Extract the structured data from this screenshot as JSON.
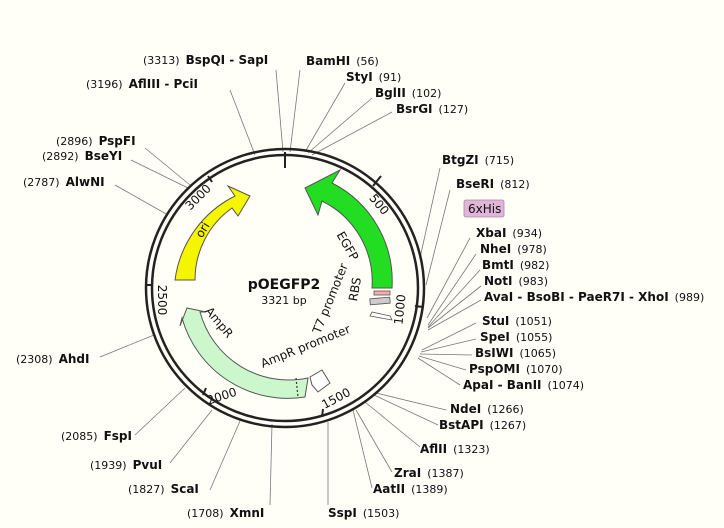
{
  "plasmid": {
    "name": "pOEGFP2",
    "length_label": "3321 bp"
  },
  "ticks": [
    "500",
    "1000",
    "1500",
    "2000",
    "2500",
    "3000"
  ],
  "features": {
    "egfp": "EGFP",
    "ori": "ori",
    "ampr": "AmpR",
    "ampr_promoter": "AmpR promoter",
    "t7_promoter": "T7 promoter",
    "rbs": "RBS",
    "his": "6xHis"
  },
  "sites": [
    {
      "id": "bspqi",
      "name": "BspQI - SapI",
      "pos": "(3313)"
    },
    {
      "id": "bamhi",
      "name": "BamHI",
      "pos": "(56)"
    },
    {
      "id": "styi",
      "name": "StyI",
      "pos": "(91)"
    },
    {
      "id": "bglii",
      "name": "BglII",
      "pos": "(102)"
    },
    {
      "id": "bsrgi",
      "name": "BsrGI",
      "pos": "(127)"
    },
    {
      "id": "afliii",
      "name": "AflIII - PciI",
      "pos": "(3196)"
    },
    {
      "id": "pspfi",
      "name": "PspFI",
      "pos": "(2896)"
    },
    {
      "id": "bseyi",
      "name": "BseYI",
      "pos": "(2892)"
    },
    {
      "id": "alwni",
      "name": "AlwNI",
      "pos": "(2787)"
    },
    {
      "id": "btgzi",
      "name": "BtgZI",
      "pos": "(715)"
    },
    {
      "id": "bseri",
      "name": "BseRI",
      "pos": "(812)"
    },
    {
      "id": "xbai",
      "name": "XbaI",
      "pos": "(934)"
    },
    {
      "id": "nhei",
      "name": "NheI",
      "pos": "(978)"
    },
    {
      "id": "bmti",
      "name": "BmtI",
      "pos": "(982)"
    },
    {
      "id": "noti",
      "name": "NotI",
      "pos": "(983)"
    },
    {
      "id": "avai",
      "name": "AvaI - BsoBI - PaeR7I - XhoI",
      "pos": "(989)"
    },
    {
      "id": "stui",
      "name": "StuI",
      "pos": "(1051)"
    },
    {
      "id": "spei",
      "name": "SpeI",
      "pos": "(1055)"
    },
    {
      "id": "bslwi",
      "name": "BsIWI",
      "pos": "(1065)"
    },
    {
      "id": "pspomi",
      "name": "PspOMI",
      "pos": "(1070)"
    },
    {
      "id": "apai",
      "name": "ApaI - BanII",
      "pos": "(1074)"
    },
    {
      "id": "ndei",
      "name": "NdeI",
      "pos": "(1266)"
    },
    {
      "id": "bstapi",
      "name": "BstAPI",
      "pos": "(1267)"
    },
    {
      "id": "aflii",
      "name": "AflII",
      "pos": "(1323)"
    },
    {
      "id": "zrai",
      "name": "ZraI",
      "pos": "(1387)"
    },
    {
      "id": "aatii",
      "name": "AatII",
      "pos": "(1389)"
    },
    {
      "id": "sspi",
      "name": "SspI",
      "pos": "(1503)"
    },
    {
      "id": "xmni",
      "name": "XmnI",
      "pos": "(1708)"
    },
    {
      "id": "scai",
      "name": "ScaI",
      "pos": "(1827)"
    },
    {
      "id": "pvui",
      "name": "PvuI",
      "pos": "(1939)"
    },
    {
      "id": "fspi",
      "name": "FspI",
      "pos": "(2085)"
    },
    {
      "id": "ahdi",
      "name": "AhdI",
      "pos": "(2308)"
    }
  ],
  "colors": {
    "egfp": "#22dd22",
    "ori": "#f5f500",
    "ampr": "#ccf7cc",
    "his_box": "#e0b5d8",
    "rbs": "#ffaaaa",
    "background": "#fffef7"
  }
}
